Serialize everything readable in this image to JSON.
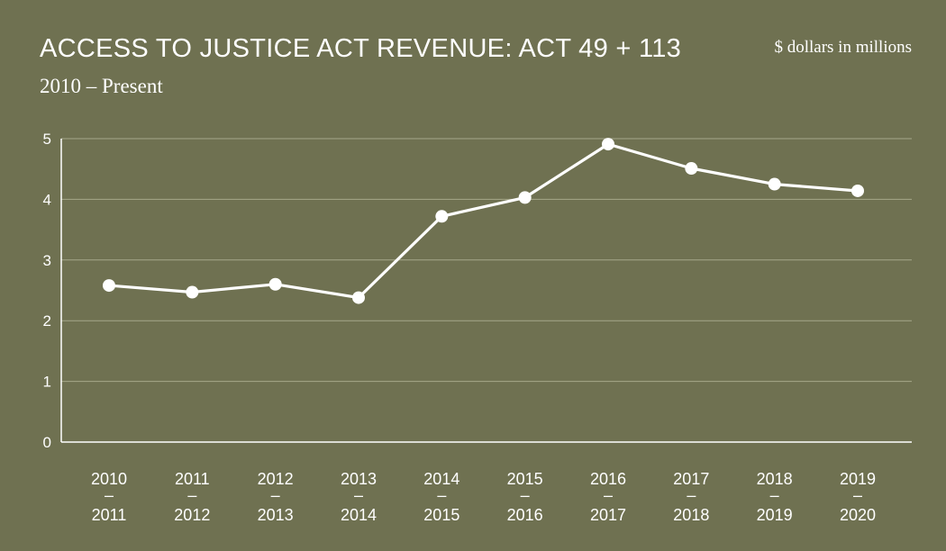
{
  "header": {
    "title": "ACCESS TO JUSTICE ACT REVENUE: ACT 49 + 113",
    "subtitle": "2010 – Present",
    "unit_note": "$ dollars in millions"
  },
  "colors": {
    "background": "#6f7151",
    "line": "#ffffff",
    "grid": "#a6a88a"
  },
  "chart_data": {
    "type": "line",
    "title": "ACCESS TO JUSTICE ACT REVENUE: ACT 49 + 113",
    "subtitle": "2010 – Present",
    "xlabel": "",
    "ylabel": "",
    "unit": "$ dollars in millions",
    "categories": [
      [
        "2010",
        "–",
        "2011"
      ],
      [
        "2011",
        "–",
        "2012"
      ],
      [
        "2012",
        "–",
        "2013"
      ],
      [
        "2013",
        "–",
        "2014"
      ],
      [
        "2014",
        "–",
        "2015"
      ],
      [
        "2015",
        "–",
        "2016"
      ],
      [
        "2016",
        "–",
        "2017"
      ],
      [
        "2017",
        "–",
        "2018"
      ],
      [
        "2018",
        "–",
        "2019"
      ],
      [
        "2019",
        "–",
        "2020"
      ]
    ],
    "values": [
      2.58,
      2.47,
      2.6,
      2.38,
      3.72,
      4.03,
      4.91,
      4.51,
      4.25,
      4.14
    ],
    "ylim": [
      0,
      5
    ],
    "yticks": [
      0,
      1,
      2,
      3,
      4,
      5
    ],
    "grid": true,
    "legend": "none"
  }
}
